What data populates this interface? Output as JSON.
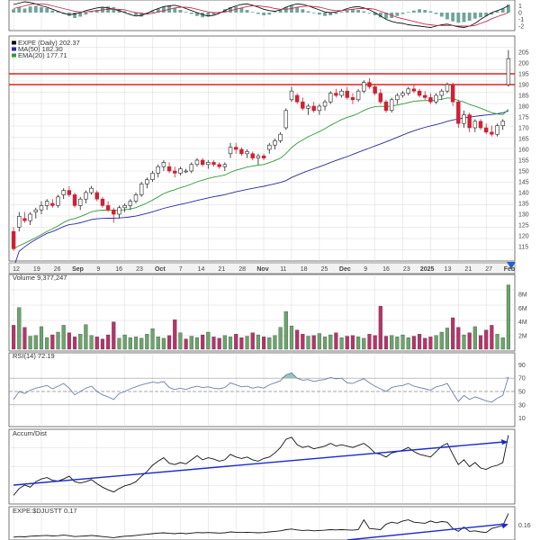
{
  "colors": {
    "background": "#ffffff",
    "panel_border": "#555555",
    "grid": "#d8d8d8",
    "up": "#3a9a3a",
    "down": "#cc2233",
    "volume_up": "#6aa56a",
    "volume_down": "#b8336a",
    "ma50": "#2a2aa0",
    "ema20": "#2e9a3a",
    "resistance": "#dd2222",
    "trendline": "#1a2ad0",
    "indicator_line": "#111111",
    "rsi_line": "#6a7fa8",
    "rsi_fill": "#7fb5a8",
    "macd_hist": "#6fa59a",
    "arrow": "#2060d0"
  },
  "chart_data": {
    "type": "candlestick",
    "symbol": "EXPE",
    "price_panel": {
      "legend": [
        {
          "label": "EXPE (Daily) 202.37",
          "color": "#000000"
        },
        {
          "label": "MA(50) 182.30",
          "color": "#2a2aa0"
        },
        {
          "label": "EMA(20) 177.71",
          "color": "#2e9a3a"
        }
      ],
      "ylim": [
        110,
        210
      ],
      "y_ticks": [
        "205",
        "200",
        "195",
        "190",
        "185",
        "180",
        "175",
        "170",
        "165",
        "160",
        "155",
        "150",
        "145",
        "140",
        "135",
        "130",
        "125",
        "120",
        "115"
      ],
      "resistance_lines": [
        190,
        195
      ],
      "x_ticks": [
        "12",
        "19",
        "26",
        "Sep",
        "9",
        "16",
        "23",
        "Oct",
        "7",
        "14",
        "21",
        "28",
        "Nov",
        "11",
        "18",
        "25",
        "Dec",
        "9",
        "16",
        "23",
        "2025",
        "13",
        "21",
        "27",
        "Feb"
      ],
      "ohlc": [
        [
          122,
          124,
          113,
          114
        ],
        [
          124,
          131,
          122,
          129
        ],
        [
          128,
          131,
          126,
          127
        ],
        [
          127,
          131,
          125,
          130
        ],
        [
          131,
          133,
          128,
          132
        ],
        [
          132,
          136,
          130,
          134
        ],
        [
          134,
          137,
          132,
          136
        ],
        [
          135,
          137,
          133,
          134
        ],
        [
          134,
          139,
          133,
          138
        ],
        [
          139,
          142,
          137,
          141
        ],
        [
          141,
          143,
          138,
          139
        ],
        [
          139,
          140,
          133,
          134
        ],
        [
          134,
          138,
          132,
          137
        ],
        [
          137,
          141,
          135,
          140
        ],
        [
          140,
          143,
          139,
          142
        ],
        [
          140,
          141,
          136,
          137
        ],
        [
          137,
          138,
          133,
          134
        ],
        [
          134,
          136,
          131,
          132
        ],
        [
          132,
          133,
          126,
          130
        ],
        [
          130,
          134,
          128,
          133
        ],
        [
          133,
          135,
          131,
          134
        ],
        [
          134,
          137,
          132,
          136
        ],
        [
          136,
          140,
          135,
          139
        ],
        [
          139,
          145,
          138,
          144
        ],
        [
          144,
          147,
          142,
          146
        ],
        [
          146,
          150,
          145,
          149
        ],
        [
          149,
          153,
          147,
          152
        ],
        [
          152,
          155,
          150,
          154
        ],
        [
          152,
          154,
          149,
          150
        ],
        [
          150,
          152,
          147,
          149
        ],
        [
          149,
          152,
          148,
          151
        ],
        [
          150,
          151,
          149,
          150
        ],
        [
          150,
          154,
          149,
          153
        ],
        [
          153,
          156,
          152,
          155
        ],
        [
          155,
          156,
          152,
          153
        ],
        [
          153,
          155,
          151,
          154
        ],
        [
          154,
          155,
          152,
          153
        ],
        [
          153,
          154,
          151,
          152
        ],
        [
          152,
          154,
          150,
          153
        ],
        [
          158,
          163,
          156,
          161
        ],
        [
          161,
          163,
          158,
          160
        ],
        [
          160,
          161,
          157,
          158
        ],
        [
          158,
          160,
          156,
          159
        ],
        [
          158,
          159,
          155,
          156
        ],
        [
          156,
          158,
          153,
          157
        ],
        [
          157,
          158,
          155,
          156
        ],
        [
          160,
          163,
          158,
          162
        ],
        [
          162,
          165,
          160,
          164
        ],
        [
          164,
          168,
          163,
          167
        ],
        [
          170,
          179,
          169,
          178
        ],
        [
          183,
          189,
          182,
          187
        ],
        [
          185,
          186,
          181,
          182
        ],
        [
          182,
          184,
          178,
          179
        ],
        [
          179,
          181,
          176,
          180
        ],
        [
          180,
          182,
          177,
          178
        ],
        [
          178,
          181,
          176,
          180
        ],
        [
          180,
          183,
          178,
          182
        ],
        [
          182,
          187,
          181,
          186
        ],
        [
          186,
          188,
          184,
          185
        ],
        [
          185,
          188,
          184,
          187
        ],
        [
          187,
          189,
          183,
          184
        ],
        [
          184,
          186,
          181,
          183
        ],
        [
          183,
          188,
          182,
          187
        ],
        [
          187,
          192,
          186,
          191
        ],
        [
          191,
          193,
          188,
          189
        ],
        [
          189,
          190,
          185,
          186
        ],
        [
          186,
          188,
          181,
          182
        ],
        [
          182,
          183,
          177,
          178
        ],
        [
          178,
          184,
          177,
          183
        ],
        [
          183,
          186,
          181,
          185
        ],
        [
          185,
          187,
          184,
          186
        ],
        [
          186,
          189,
          185,
          188
        ],
        [
          188,
          190,
          186,
          187
        ],
        [
          187,
          188,
          184,
          185
        ],
        [
          185,
          187,
          183,
          184
        ],
        [
          184,
          186,
          181,
          182
        ],
        [
          182,
          186,
          181,
          185
        ],
        [
          185,
          188,
          183,
          187
        ],
        [
          187,
          191,
          186,
          190
        ],
        [
          190,
          191,
          180,
          182
        ],
        [
          182,
          183,
          170,
          172
        ],
        [
          172,
          178,
          170,
          176
        ],
        [
          176,
          177,
          168,
          170
        ],
        [
          170,
          174,
          168,
          173
        ],
        [
          173,
          174,
          169,
          170
        ],
        [
          170,
          172,
          167,
          168
        ],
        [
          168,
          171,
          166,
          167
        ],
        [
          167,
          172,
          166,
          171
        ],
        [
          171,
          174,
          169,
          173
        ],
        [
          190,
          206,
          189,
          202
        ]
      ]
    },
    "volume_panel": {
      "label": "Volume 9,377,247",
      "y_ticks": [
        "8M",
        "6M",
        "4M",
        "2M"
      ],
      "ylim": [
        0,
        10
      ],
      "values_m": [
        3.5,
        6.1,
        3.2,
        1.9,
        2.0,
        3.3,
        1.7,
        2.1,
        2.5,
        3.5,
        2.4,
        1.8,
        2.2,
        3.6,
        2.0,
        1.8,
        1.5,
        2.1,
        4.0,
        1.6,
        2.1,
        1.7,
        1.8,
        1.6,
        2.2,
        3.0,
        1.8,
        1.6,
        2.0,
        4.3,
        2.4,
        1.5,
        1.9,
        1.7,
        2.1,
        2.5,
        1.8,
        1.6,
        2.0,
        1.8,
        2.2,
        1.7,
        1.9,
        2.4,
        2.1,
        1.8,
        1.7,
        2.0,
        3.2,
        5.5,
        3.4,
        2.8,
        2.2,
        1.9,
        2.0,
        2.3,
        1.8,
        2.1,
        2.4,
        1.7,
        1.9,
        2.0,
        1.8,
        1.6,
        2.2,
        2.0,
        6.3,
        1.9,
        2.0,
        1.8,
        2.1,
        1.7,
        1.9,
        2.2,
        1.6,
        1.8,
        2.0,
        2.5,
        3.1,
        4.6,
        3.2,
        2.1,
        2.4,
        3.3,
        2.0,
        2.8,
        3.5,
        2.2,
        1.7,
        9.4
      ],
      "up_flags": [
        0,
        1,
        0,
        1,
        1,
        1,
        1,
        0,
        1,
        1,
        0,
        0,
        1,
        1,
        1,
        0,
        0,
        0,
        0,
        1,
        1,
        1,
        1,
        1,
        1,
        1,
        1,
        1,
        0,
        0,
        1,
        0,
        1,
        1,
        0,
        1,
        0,
        0,
        1,
        1,
        0,
        0,
        1,
        0,
        1,
        0,
        1,
        1,
        1,
        1,
        1,
        0,
        0,
        1,
        0,
        1,
        1,
        1,
        0,
        1,
        0,
        0,
        1,
        1,
        0,
        0,
        0,
        0,
        1,
        1,
        1,
        1,
        0,
        0,
        0,
        0,
        1,
        1,
        1,
        0,
        0,
        1,
        0,
        1,
        0,
        0,
        0,
        1,
        1,
        1
      ]
    },
    "rsi_panel": {
      "label": "RSI(14) 72.19",
      "y_ticks": [
        "90",
        "70",
        "50",
        "30",
        "10"
      ],
      "ylim": [
        0,
        100
      ],
      "levels": [
        70,
        50,
        30
      ],
      "values": [
        38,
        50,
        47,
        52,
        55,
        57,
        59,
        54,
        58,
        62,
        55,
        45,
        50,
        55,
        58,
        50,
        45,
        42,
        38,
        47,
        50,
        54,
        57,
        60,
        62,
        64,
        63,
        65,
        56,
        53,
        55,
        53,
        56,
        58,
        56,
        57,
        55,
        54,
        56,
        63,
        60,
        57,
        58,
        55,
        57,
        55,
        60,
        63,
        66,
        75,
        78,
        70,
        67,
        68,
        65,
        67,
        68,
        71,
        69,
        70,
        63,
        62,
        66,
        69,
        63,
        58,
        54,
        50,
        56,
        58,
        59,
        62,
        58,
        56,
        54,
        52,
        57,
        59,
        62,
        48,
        35,
        44,
        38,
        42,
        39,
        36,
        34,
        40,
        44,
        72
      ]
    },
    "accum_dist_panel": {
      "label": "Accum/Dist",
      "trendline": [
        {
          "x": 0,
          "y": 0.25
        },
        {
          "x": 89,
          "y": 0.88
        }
      ],
      "values": [
        0.1,
        0.2,
        0.25,
        0.22,
        0.3,
        0.34,
        0.36,
        0.32,
        0.31,
        0.34,
        0.38,
        0.3,
        0.28,
        0.3,
        0.33,
        0.27,
        0.22,
        0.18,
        0.15,
        0.2,
        0.24,
        0.26,
        0.3,
        0.38,
        0.45,
        0.54,
        0.6,
        0.65,
        0.57,
        0.55,
        0.58,
        0.56,
        0.62,
        0.68,
        0.62,
        0.65,
        0.63,
        0.6,
        0.62,
        0.7,
        0.66,
        0.64,
        0.66,
        0.62,
        0.6,
        0.64,
        0.66,
        0.72,
        0.8,
        0.92,
        0.95,
        0.84,
        0.8,
        0.82,
        0.78,
        0.8,
        0.82,
        0.86,
        0.82,
        0.84,
        0.82,
        0.8,
        0.83,
        0.86,
        0.8,
        0.72,
        0.7,
        0.66,
        0.72,
        0.74,
        0.76,
        0.8,
        0.74,
        0.7,
        0.68,
        0.66,
        0.74,
        0.82,
        0.86,
        0.7,
        0.55,
        0.62,
        0.52,
        0.58,
        0.5,
        0.48,
        0.52,
        0.54,
        0.58,
        0.98
      ]
    },
    "relative_strength_panel": {
      "label": "EXPE:$DJUSTT 0.17",
      "y_ticks": [
        "0.16"
      ],
      "trendline": [
        {
          "x": 60,
          "y": 0.0
        },
        {
          "x": 89,
          "y": 0.55
        }
      ],
      "values": [
        0.1,
        0.12,
        0.11,
        0.13,
        0.14,
        0.15,
        0.16,
        0.14,
        0.15,
        0.17,
        0.15,
        0.12,
        0.13,
        0.14,
        0.16,
        0.14,
        0.12,
        0.1,
        0.08,
        0.11,
        0.13,
        0.14,
        0.16,
        0.18,
        0.2,
        0.22,
        0.24,
        0.25,
        0.23,
        0.22,
        0.24,
        0.22,
        0.24,
        0.26,
        0.25,
        0.26,
        0.25,
        0.24,
        0.25,
        0.28,
        0.27,
        0.26,
        0.27,
        0.26,
        0.25,
        0.26,
        0.28,
        0.3,
        0.32,
        0.36,
        0.38,
        0.35,
        0.33,
        0.34,
        0.32,
        0.33,
        0.34,
        0.36,
        0.35,
        0.36,
        0.35,
        0.34,
        0.36,
        0.7,
        0.4,
        0.38,
        0.36,
        0.55,
        0.62,
        0.58,
        0.66,
        0.7,
        0.62,
        0.6,
        0.58,
        0.66,
        0.6,
        0.64,
        0.62,
        0.4,
        0.3,
        0.45,
        0.3,
        0.32,
        0.28,
        0.26,
        0.4,
        0.45,
        0.5,
        0.92
      ]
    },
    "macd_panel": {
      "y_ticks": [
        "1",
        "0",
        "-1",
        "-2"
      ],
      "histogram": [
        0.5,
        0.8,
        0.6,
        0.9,
        1.0,
        0.8,
        0.7,
        0.3,
        0.2,
        -0.2,
        -0.5,
        -0.8,
        -0.6,
        -0.3,
        0.1,
        0.4,
        0.7,
        0.9,
        0.8,
        0.5,
        0.2,
        -0.1,
        -0.4,
        -0.6,
        -0.3,
        0.2,
        0.6,
        0.9,
        1.0,
        0.7,
        0.4,
        0.1,
        -0.2,
        -0.5,
        -0.7,
        -0.6,
        -0.3,
        0.1,
        0.5,
        0.8,
        0.9,
        0.7,
        0.4,
        0.1,
        -0.2,
        -0.4,
        -0.3,
        0.1,
        0.4,
        0.8,
        1.0,
        0.8,
        0.5,
        0.2,
        -0.1,
        -0.3,
        -0.5,
        -0.4,
        -0.2,
        0.1,
        0.3,
        0.5,
        0.4,
        0.2,
        -0.1,
        -0.4,
        -0.7,
        -0.9,
        -0.8,
        -0.5,
        -0.2,
        0.1,
        0.3,
        0.5,
        0.4,
        0.2,
        -0.2,
        -0.6,
        -1.0,
        -1.3,
        -1.5,
        -1.4,
        -1.2,
        -0.9,
        -0.7,
        -0.5,
        -0.3,
        0.2,
        0.6,
        1.2
      ],
      "macd_line": [
        1.2,
        1.4,
        1.6,
        1.5,
        1.3,
        1.0,
        0.8,
        0.5,
        0.2,
        -0.1,
        -0.3,
        -0.2,
        0.0,
        0.3,
        0.5,
        0.7,
        0.8,
        0.7,
        0.5,
        0.3,
        0.0,
        -0.3,
        -0.5,
        -0.4,
        -0.1,
        0.3,
        0.6,
        0.9,
        1.0,
        1.1,
        0.9,
        0.6,
        0.3,
        0.0,
        -0.3,
        -0.5,
        -0.4,
        -0.1,
        0.3,
        0.7,
        1.0,
        1.2,
        1.3,
        1.1,
        0.8,
        0.5,
        0.3,
        0.2,
        0.4,
        0.8,
        1.1,
        1.3,
        1.2,
        1.0,
        0.7,
        0.4,
        0.1,
        0.0,
        0.1,
        0.3,
        0.6,
        0.8,
        0.9,
        0.7,
        0.4,
        0.0,
        -0.5,
        -1.0,
        -1.3,
        -1.5,
        -1.6,
        -1.8,
        -1.9,
        -2.0,
        -2.1,
        -2.2,
        -2.0,
        -1.8,
        -1.7,
        -1.9,
        -2.1,
        -2.2,
        -2.0,
        -1.6,
        -1.0,
        -0.5,
        0.0,
        0.3,
        0.6,
        1.0
      ],
      "signal_line": [
        0.6,
        0.8,
        1.0,
        1.2,
        1.3,
        1.3,
        1.2,
        1.0,
        0.8,
        0.6,
        0.4,
        0.2,
        0.1,
        0.1,
        0.2,
        0.3,
        0.4,
        0.5,
        0.5,
        0.5,
        0.4,
        0.2,
        0.0,
        -0.1,
        -0.2,
        -0.1,
        0.1,
        0.3,
        0.5,
        0.7,
        0.8,
        0.8,
        0.7,
        0.5,
        0.3,
        0.1,
        0.0,
        0.0,
        0.1,
        0.3,
        0.5,
        0.7,
        0.9,
        1.0,
        1.0,
        0.9,
        0.8,
        0.6,
        0.5,
        0.5,
        0.6,
        0.8,
        0.9,
        1.0,
        0.9,
        0.8,
        0.6,
        0.4,
        0.3,
        0.3,
        0.4,
        0.5,
        0.6,
        0.6,
        0.6,
        0.5,
        0.2,
        -0.1,
        -0.4,
        -0.7,
        -0.9,
        -1.1,
        -1.3,
        -1.5,
        -1.7,
        -1.8,
        -1.9,
        -1.9,
        -1.9,
        -1.9,
        -2.0,
        -2.0,
        -2.0,
        -1.9,
        -1.6,
        -1.3,
        -0.9,
        -0.6,
        -0.3,
        0.0
      ]
    }
  }
}
